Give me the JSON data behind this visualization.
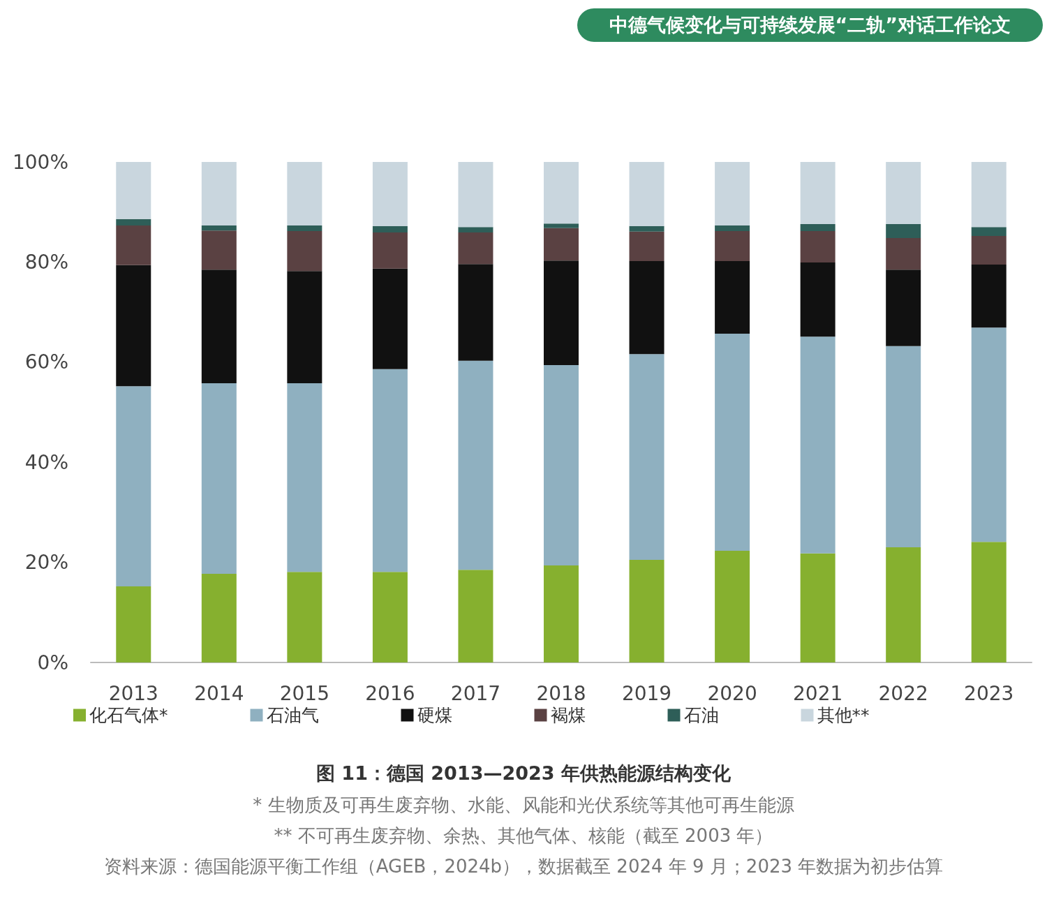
{
  "chart_data": {
    "type": "bar",
    "title": "图 11：德国 2013—2023 年供热能源结构变化",
    "annotations": [
      "中德气候变化与可持续发展“二轨”对话工作论文",
      "* 生物质及可再生废弃物、水能、风能和光伏系统等其他可再生能源",
      "** 不可再生废弃物、余热、其他气体、核能（截至 2003 年）",
      "资料来源：德国能源平衡工作组（AGEB，2024b），数据截至 2024 年 9 月；2023 年数据为初步估算"
    ],
    "categories": [
      "2013",
      "2014",
      "2015",
      "2016",
      "2017",
      "2018",
      "2019",
      "2020",
      "2021",
      "2022",
      "2023"
    ],
    "stacked": true,
    "series": [
      {
        "name": "化石气体*",
        "color": "#86b02f",
        "values": [
          15.2,
          17.7,
          18.1,
          18.1,
          18.5,
          19.4,
          20.5,
          22.3,
          21.8,
          23.0,
          24.1
        ]
      },
      {
        "name": "石油气",
        "color": "#8fb0c0",
        "values": [
          40.0,
          38.1,
          37.7,
          40.5,
          41.8,
          40.0,
          41.1,
          43.4,
          43.3,
          40.2,
          42.8
        ]
      },
      {
        "name": "硬煤",
        "color": "#111111",
        "values": [
          24.2,
          22.7,
          22.4,
          20.1,
          19.3,
          20.9,
          18.6,
          14.5,
          14.8,
          15.3,
          12.6
        ]
      },
      {
        "name": "褐煤",
        "color": "#5a4142",
        "values": [
          7.9,
          7.8,
          8.0,
          7.2,
          6.3,
          6.5,
          5.9,
          6.0,
          6.3,
          6.3,
          5.7
        ]
      },
      {
        "name": "石油",
        "color": "#2e5e58",
        "values": [
          1.3,
          1.0,
          1.1,
          1.3,
          1.1,
          0.9,
          1.1,
          1.1,
          1.4,
          2.8,
          1.8
        ]
      },
      {
        "name": "其他**",
        "color": "#c9d6de",
        "values": [
          11.4,
          12.7,
          12.7,
          12.8,
          13.0,
          12.3,
          12.8,
          12.7,
          12.4,
          12.4,
          13.0
        ]
      }
    ],
    "ylim": [
      0,
      100
    ],
    "yticks": [
      {
        "value": 0,
        "label": "0%"
      },
      {
        "value": 20,
        "label": "20%"
      },
      {
        "value": 40,
        "label": "40%"
      },
      {
        "value": 60,
        "label": "60%"
      },
      {
        "value": 80,
        "label": "80%"
      },
      {
        "value": 100,
        "label": "100%"
      }
    ],
    "grid": false,
    "legend": "bottom"
  }
}
